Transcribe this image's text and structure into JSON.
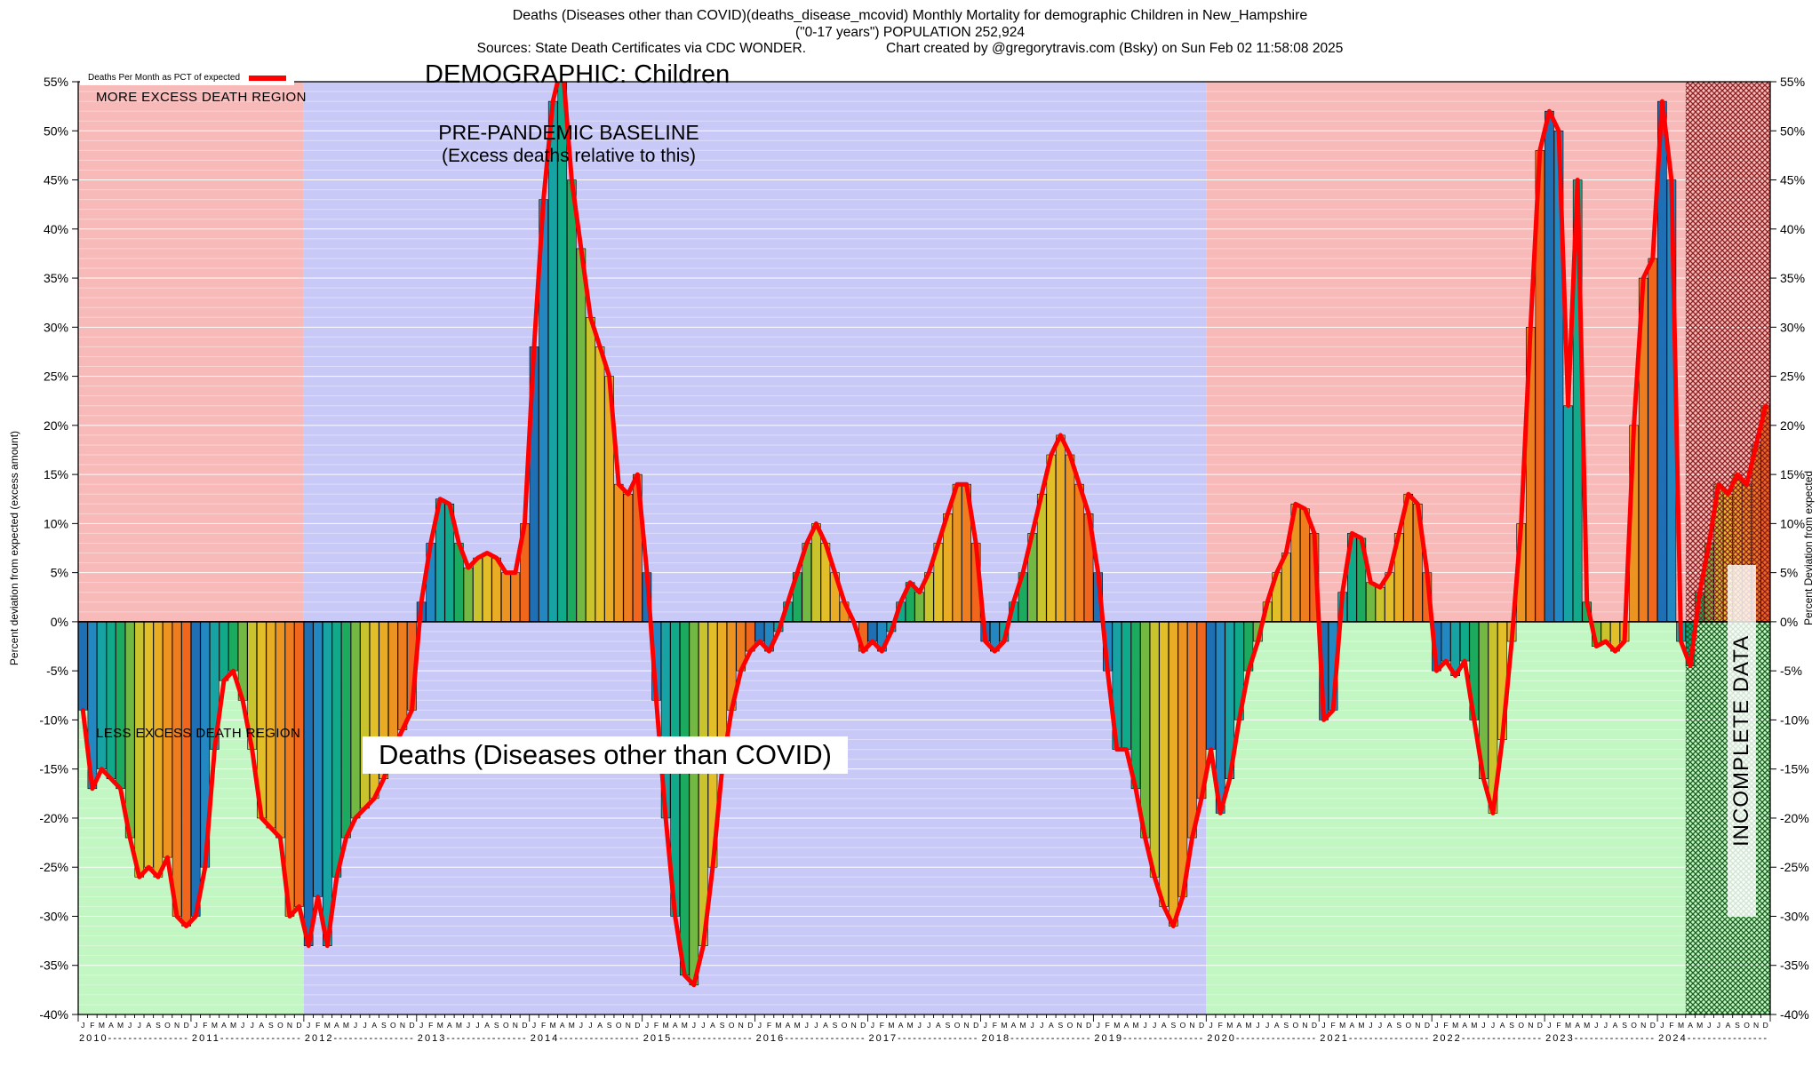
{
  "header": {
    "title_line1": "Deaths (Diseases other than COVID)(deaths_disease_mcovid) Monthly Mortality for demographic Children in New_Hampshire",
    "title_line2": "(\"0-17 years\") POPULATION 252,924",
    "sources": "Sources: State Death Certificates via CDC WONDER.",
    "credit": "Chart created by @gregorytravis.com (Bsky) on Sun Feb 02 11:58:08 2025"
  },
  "annotations": {
    "more_region": "MORE EXCESS DEATH REGION",
    "less_region": "LESS EXCESS DEATH REGION",
    "demographic": "DEMOGRAPHIC: Children",
    "baseline_line1": "PRE-PANDEMIC BASELINE",
    "baseline_line2": "(Excess deaths relative to this)",
    "bottom_title": "Deaths (Diseases other than COVID)",
    "incomplete": "INCOMPLETE DATA"
  },
  "chart_data": {
    "type": "bar",
    "line_overlay": true,
    "title": "DEMOGRAPHIC: Children",
    "legend": "Deaths Per Month as PCT of expected",
    "ylabel_left": "Percent deviation from expected (excess amount)",
    "ylabel_right": "Percent Deviation from expected",
    "ylim": [
      -40,
      55
    ],
    "ytick_step": 5,
    "tick_suffix": "%",
    "grid": true,
    "start_year": 2010,
    "years": [
      2010,
      2011,
      2012,
      2013,
      2014,
      2015,
      2016,
      2017,
      2018,
      2019,
      2020,
      2021,
      2022,
      2023,
      2024
    ],
    "month_letters": [
      "J",
      "F",
      "M",
      "A",
      "M",
      "J",
      "J",
      "A",
      "S",
      "O",
      "N",
      "D"
    ],
    "values_by_year": {
      "2010": [
        -9,
        -17,
        -15,
        -16,
        -17,
        -22,
        -26,
        -25,
        -26,
        -24,
        -30,
        -31
      ],
      "2011": [
        -30,
        -25,
        -13,
        -6,
        -5,
        -8,
        -13,
        -20,
        -21,
        -22,
        -30,
        -29
      ],
      "2012": [
        -33,
        -28,
        -33,
        -26,
        -22,
        -20,
        -19,
        -18,
        -16,
        -13,
        -11,
        -9
      ],
      "2013": [
        2,
        8,
        12.5,
        12,
        8,
        5.5,
        6.5,
        7,
        6.5,
        5,
        5,
        10
      ],
      "2014": [
        28,
        43,
        53,
        57,
        45,
        38,
        31,
        28,
        25,
        14,
        13,
        15
      ],
      "2015": [
        5,
        -8,
        -20,
        -30,
        -36,
        -37,
        -33,
        -25,
        -15,
        -9,
        -5,
        -3
      ],
      "2016": [
        -2,
        -3,
        -1,
        2,
        5,
        8,
        10,
        8,
        5,
        2,
        0,
        -3
      ],
      "2017": [
        -2,
        -3,
        -1,
        2,
        4,
        3,
        5,
        8,
        11,
        14,
        14,
        8
      ],
      "2018": [
        -2,
        -3,
        -2,
        2,
        5,
        9,
        13,
        17,
        19,
        17,
        14,
        11
      ],
      "2019": [
        5,
        -5,
        -13,
        -13,
        -17,
        -22,
        -26,
        -29,
        -31,
        -28,
        -22,
        -18
      ],
      "2020": [
        -13,
        -19.5,
        -16,
        -10,
        -5,
        -2,
        2,
        5,
        7,
        12,
        11.5,
        9
      ],
      "2021": [
        -10,
        -9,
        3,
        9,
        8.5,
        4,
        3.5,
        5,
        9,
        13,
        12,
        5
      ],
      "2022": [
        -5,
        -4,
        -5.5,
        -4,
        -10,
        -16,
        -19.5,
        -12,
        -2,
        10,
        30,
        48
      ],
      "2023": [
        52,
        50,
        22,
        45,
        2,
        -2.5,
        -2,
        -3,
        -2,
        20,
        35,
        37
      ],
      "2024": [
        53,
        45,
        -2,
        -4.5,
        3,
        8,
        14,
        13,
        15,
        14,
        18,
        22
      ]
    },
    "regions": [
      {
        "style": "split",
        "start_month": 0,
        "end_month": 24
      },
      {
        "style": "baseline",
        "start_month": 24,
        "end_month": 120
      },
      {
        "style": "split",
        "start_month": 120,
        "end_month": 171
      },
      {
        "style": "incomplete",
        "start_month": 171,
        "end_month": 180
      }
    ],
    "colors": {
      "above_zero_region": "#f8b9b9",
      "below_zero_region": "#c2f6c2",
      "baseline_region": "#c9c9f8",
      "hatch_red": "#8a1f1f",
      "hatch_green": "#185c20",
      "line": "#ff0000",
      "grid": "#ffffff",
      "month_palette": [
        "#1f6fb5",
        "#2388c2",
        "#17a2a4",
        "#10a98a",
        "#1cab5e",
        "#72b843",
        "#c9c32e",
        "#e2bf29",
        "#e9ac25",
        "#ec9422",
        "#ee7d1f",
        "#ef661c"
      ]
    }
  }
}
